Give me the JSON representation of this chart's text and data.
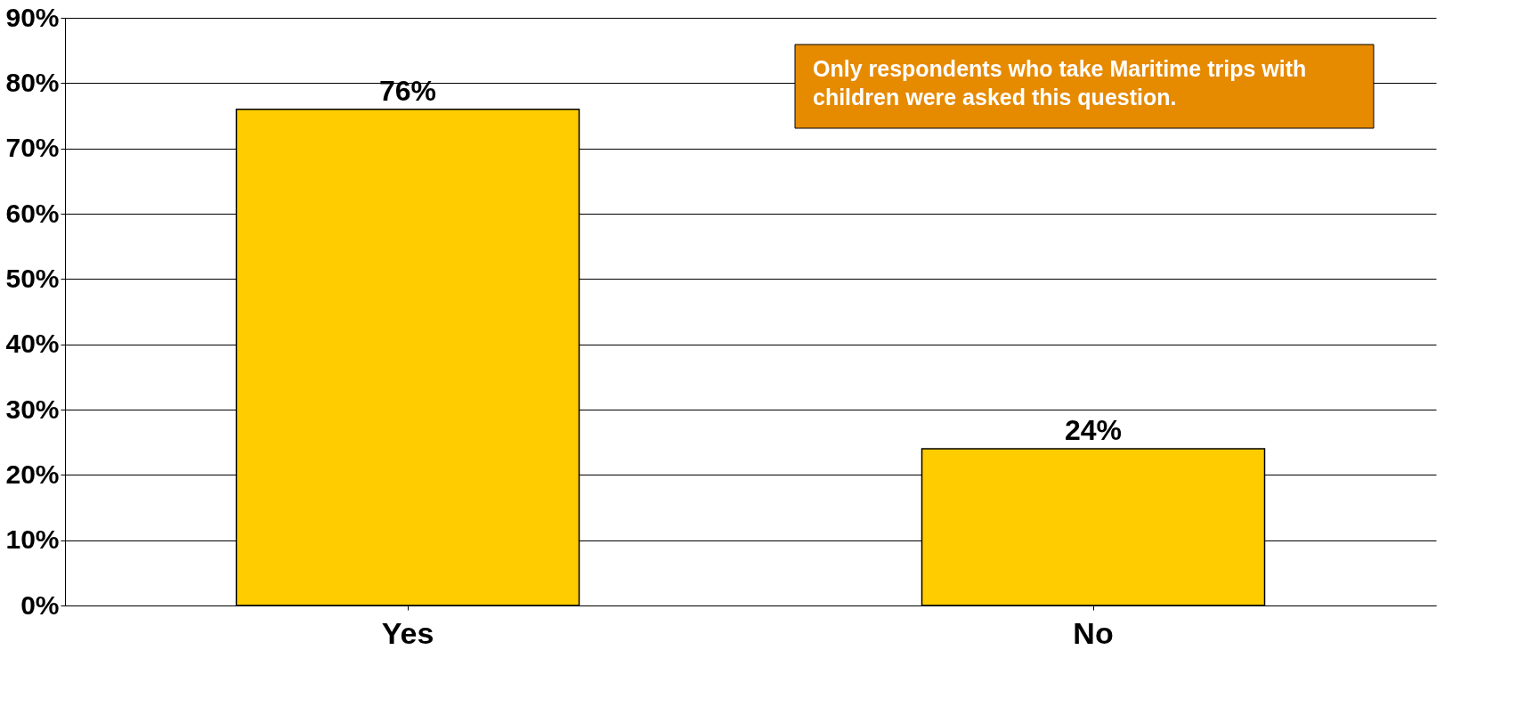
{
  "chart_data": {
    "type": "bar",
    "categories": [
      "Yes",
      "No"
    ],
    "values": [
      76,
      24
    ],
    "color": "#ffcc00",
    "value_labels": [
      "76%",
      "24%"
    ],
    "ylim": [
      0,
      90
    ],
    "yticks": [
      {
        "value": 0,
        "label": "0%"
      },
      {
        "value": 10,
        "label": "10%"
      },
      {
        "value": 20,
        "label": "20%"
      },
      {
        "value": 30,
        "label": "30%"
      },
      {
        "value": 40,
        "label": "40%"
      },
      {
        "value": 50,
        "label": "50%"
      },
      {
        "value": 60,
        "label": "60%"
      },
      {
        "value": 70,
        "label": "70%"
      },
      {
        "value": 80,
        "label": "80%"
      },
      {
        "value": 90,
        "label": "90%"
      }
    ],
    "grid": "y",
    "annotations": [
      "Only respondents who take Maritime trips with children were asked this question."
    ]
  }
}
